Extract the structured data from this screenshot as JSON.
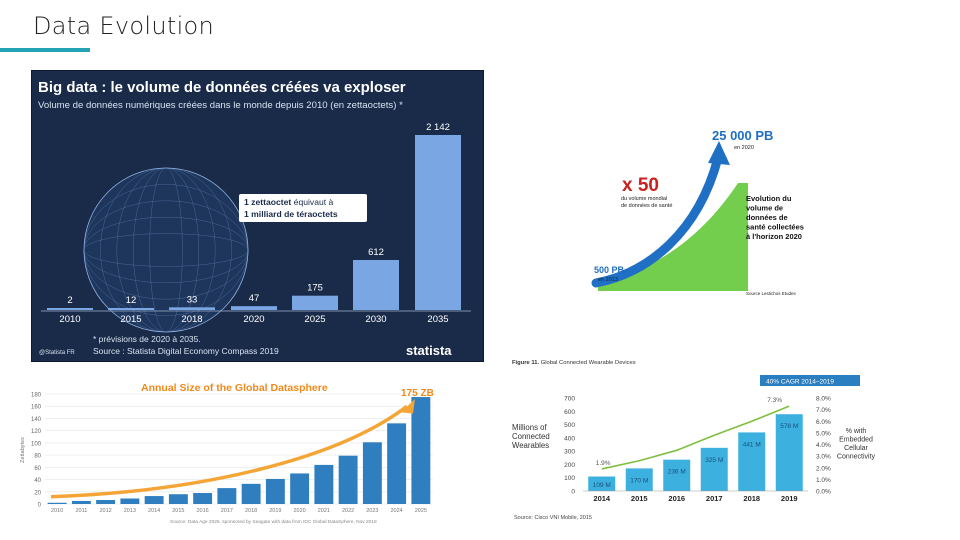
{
  "slide": {
    "title": "Data Evolution",
    "accent": "#23a3b4"
  },
  "chart_data": [
    {
      "type": "bar",
      "title": "Big data : le volume de données créées va exploser",
      "subtitle": "Volume de données numériques créées dans le monde depuis 2010 (en zettaoctets) *",
      "categories": [
        "2010",
        "2015",
        "2018",
        "2020",
        "2025",
        "2030",
        "2035"
      ],
      "values": [
        2,
        12,
        33,
        47,
        175,
        612,
        2142
      ],
      "value_labels": [
        "2",
        "12",
        "33",
        "47",
        "175",
        "612",
        "2 142"
      ],
      "ylim": [
        0,
        2142
      ],
      "callout_line1_bold": "1 zettaoctet",
      "callout_line1_rest": " équivaut à",
      "callout_line2": "1 milliard de téraoctets",
      "footnote": "* prévisions de 2020 à 2035.",
      "source": "Source : Statista Digital Economy Compass 2019",
      "brand": "statista",
      "handle": "@Statista FR",
      "colors": {
        "bg": "#1a2b4a",
        "bar": "#7aa6e3",
        "text": "#ffffff"
      }
    },
    {
      "type": "area",
      "title": "Evolution du volume de données de santé collectées à l'horizon 2020",
      "start_value": "500 PB",
      "start_year": "en 2013",
      "end_value": "25 000 PB",
      "end_year": "en 2020",
      "multiplier": "x 50",
      "multiplier_caption": [
        "du volume mondial",
        "de données de santé"
      ],
      "title_lines": [
        "Evolution du",
        "volume de",
        "données de",
        "santé collectées",
        "à l'horizon 2020"
      ],
      "source": "Source Lestichos Etudes",
      "colors": {
        "arrow": "#1f6fc4",
        "green": "#5cc62e",
        "red": "#cc1f1f"
      }
    },
    {
      "type": "bar",
      "title": "Annual Size of the Global Datasphere",
      "categories": [
        "2010",
        "2011",
        "2012",
        "2013",
        "2014",
        "2015",
        "2016",
        "2017",
        "2018",
        "2019",
        "2020",
        "2021",
        "2022",
        "2023",
        "2024",
        "2025"
      ],
      "values": [
        2,
        5,
        6.5,
        9,
        13,
        16,
        18,
        26,
        33,
        41,
        50,
        64,
        79,
        101,
        132,
        175
      ],
      "ylim": [
        0,
        180
      ],
      "yticks": [
        0,
        20,
        40,
        60,
        80,
        100,
        120,
        140,
        160,
        180
      ],
      "ylabel": "Zettabytes",
      "annotation": "175 ZB",
      "source": "Source: Data Age 2025, sponsored by Seagate with data from IDC Global DataSphere, Nov 2018",
      "colors": {
        "bar": "#2f7fc0",
        "arrow": "#f4a535",
        "title": "#f08a1c"
      }
    },
    {
      "type": "bar",
      "figure_label": "Figure 11.",
      "title": "Global Connected Wearable Devices",
      "categories": [
        "2014",
        "2015",
        "2016",
        "2017",
        "2018",
        "2019"
      ],
      "values": [
        109,
        170,
        236,
        325,
        441,
        578
      ],
      "value_labels": [
        "109 M",
        "170 M",
        "236 M",
        "325 M",
        "441 M",
        "578 M"
      ],
      "line_values": [
        1.9,
        2.6,
        3.5,
        4.8,
        6.0,
        7.3
      ],
      "line_labels_first": "1.9%",
      "line_labels_last": "7.3%",
      "ylim": [
        0,
        700
      ],
      "yticks": [
        0,
        100,
        200,
        300,
        400,
        500,
        600,
        700
      ],
      "y2lim": [
        0,
        8
      ],
      "y2ticks": [
        "0.0%",
        "1.0%",
        "2.0%",
        "3.0%",
        "4.0%",
        "5.0%",
        "6.0%",
        "7.0%",
        "8.0%"
      ],
      "ylabel_lines": [
        "Millions of",
        "Connected",
        "Wearables"
      ],
      "y2label_lines": [
        "% with",
        "Embedded",
        "Cellular",
        "Connectivity"
      ],
      "cagr": "40% CAGR 2014–2019",
      "source": "Source: Cisco VNI Mobile, 2015",
      "colors": {
        "bar": "#3cb0de",
        "line": "#7fbf3f",
        "cagr_bg": "#2a7fc1"
      }
    }
  ]
}
